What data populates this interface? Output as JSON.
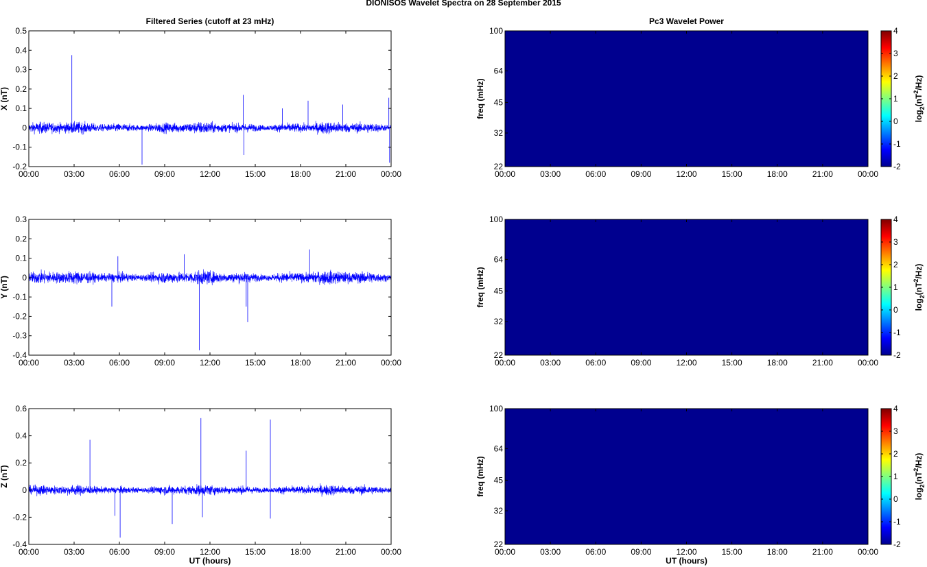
{
  "figure": {
    "title": "DIONISOS Wavelet Spectra on 28 September 2015"
  },
  "colors": {
    "trace": "#0000ff",
    "spectrum_fill": "#00008f",
    "colormap": [
      "#00008f",
      "#0000ff",
      "#0080ff",
      "#00ffff",
      "#80ff80",
      "#ffff00",
      "#ff8000",
      "#ff0000",
      "#800000"
    ]
  },
  "chart_data": [
    {
      "id": "x-series",
      "type": "line",
      "title": "Filtered Series (cutoff at 23 mHz)",
      "xlabel": "",
      "ylabel": "X (nT)",
      "xlim": [
        0,
        24
      ],
      "ylim": [
        -0.2,
        0.5
      ],
      "yticks": [
        "-0.2",
        "-0.1",
        "0",
        "0.1",
        "0.2",
        "0.3",
        "0.4",
        "0.5"
      ],
      "xticks": [
        "00:00",
        "03:00",
        "06:00",
        "09:00",
        "12:00",
        "15:00",
        "18:00",
        "21:00",
        "00:00"
      ],
      "noise_amplitude": 0.04,
      "spikes": [
        {
          "t": 2.85,
          "v": 0.375
        },
        {
          "t": 7.5,
          "v": -0.19
        },
        {
          "t": 14.2,
          "v": 0.17
        },
        {
          "t": 14.25,
          "v": -0.14
        },
        {
          "t": 18.5,
          "v": 0.14
        },
        {
          "t": 20.8,
          "v": 0.12
        },
        {
          "t": 23.85,
          "v": 0.155
        },
        {
          "t": 23.9,
          "v": -0.18
        },
        {
          "t": 16.8,
          "v": 0.1
        }
      ]
    },
    {
      "id": "x-spectrum",
      "type": "heatmap",
      "title": "Pc3 Wavelet Power",
      "xlabel": "",
      "ylabel": "freq (mHz)",
      "xlim": [
        0,
        24
      ],
      "yticks": [
        "22",
        "32",
        "45",
        "64",
        "100"
      ],
      "xticks": [
        "00:00",
        "03:00",
        "06:00",
        "09:00",
        "12:00",
        "15:00",
        "18:00",
        "21:00",
        "00:00"
      ],
      "value": -2,
      "colorbar": {
        "label_main": "log",
        "label_sub": "2",
        "label_rest": "(nT",
        "label_sup": "2",
        "label_end": "/Hz)",
        "ticks": [
          "-2",
          "-1",
          "0",
          "1",
          "2",
          "3",
          "4"
        ],
        "range": [
          -2,
          4
        ]
      }
    },
    {
      "id": "y-series",
      "type": "line",
      "title": "",
      "xlabel": "",
      "ylabel": "Y (nT)",
      "xlim": [
        0,
        24
      ],
      "ylim": [
        -0.4,
        0.3
      ],
      "yticks": [
        "-0.4",
        "-0.3",
        "-0.2",
        "-0.1",
        "0",
        "0.1",
        "0.2",
        "0.3"
      ],
      "xticks": [
        "00:00",
        "03:00",
        "06:00",
        "09:00",
        "12:00",
        "15:00",
        "18:00",
        "21:00",
        "00:00"
      ],
      "noise_amplitude": 0.045,
      "spikes": [
        {
          "t": 11.3,
          "v": -0.375
        },
        {
          "t": 14.5,
          "v": -0.23
        },
        {
          "t": 18.6,
          "v": 0.145
        },
        {
          "t": 5.5,
          "v": -0.15
        },
        {
          "t": 5.9,
          "v": 0.11
        },
        {
          "t": 10.3,
          "v": 0.12
        },
        {
          "t": 14.4,
          "v": -0.15
        }
      ]
    },
    {
      "id": "y-spectrum",
      "type": "heatmap",
      "title": "",
      "xlabel": "",
      "ylabel": "freq (mHz)",
      "xlim": [
        0,
        24
      ],
      "yticks": [
        "22",
        "32",
        "45",
        "64",
        "100"
      ],
      "xticks": [
        "00:00",
        "03:00",
        "06:00",
        "09:00",
        "12:00",
        "15:00",
        "18:00",
        "21:00",
        "00:00"
      ],
      "value": -2,
      "colorbar": {
        "label_main": "log",
        "label_sub": "2",
        "label_rest": "(nT",
        "label_sup": "2",
        "label_end": "/Hz)",
        "ticks": [
          "-2",
          "-1",
          "0",
          "1",
          "2",
          "3",
          "4"
        ],
        "range": [
          -2,
          4
        ]
      }
    },
    {
      "id": "z-series",
      "type": "line",
      "title": "",
      "xlabel": "UT (hours)",
      "ylabel": "Z (nT)",
      "xlim": [
        0,
        24
      ],
      "ylim": [
        -0.4,
        0.6
      ],
      "yticks": [
        "-0.4",
        "-0.2",
        "0",
        "0.2",
        "0.4",
        "0.6"
      ],
      "xticks": [
        "00:00",
        "03:00",
        "06:00",
        "09:00",
        "12:00",
        "15:00",
        "18:00",
        "21:00",
        "00:00"
      ],
      "noise_amplitude": 0.05,
      "spikes": [
        {
          "t": 11.4,
          "v": 0.53
        },
        {
          "t": 16.0,
          "v": 0.52
        },
        {
          "t": 4.05,
          "v": 0.37
        },
        {
          "t": 14.4,
          "v": 0.29
        },
        {
          "t": 6.05,
          "v": -0.35
        },
        {
          "t": 9.5,
          "v": -0.25
        },
        {
          "t": 11.5,
          "v": -0.2
        },
        {
          "t": 16.0,
          "v": -0.21
        },
        {
          "t": 5.7,
          "v": -0.19
        }
      ]
    },
    {
      "id": "z-spectrum",
      "type": "heatmap",
      "title": "",
      "xlabel": "UT (hours)",
      "ylabel": "freq (mHz)",
      "xlim": [
        0,
        24
      ],
      "yticks": [
        "22",
        "32",
        "45",
        "64",
        "100"
      ],
      "xticks": [
        "00:00",
        "03:00",
        "06:00",
        "09:00",
        "12:00",
        "15:00",
        "18:00",
        "21:00",
        "00:00"
      ],
      "value": -2,
      "colorbar": {
        "label_main": "log",
        "label_sub": "2",
        "label_rest": "(nT",
        "label_sup": "2",
        "label_end": "/Hz)",
        "ticks": [
          "-2",
          "-1",
          "0",
          "1",
          "2",
          "3",
          "4"
        ],
        "range": [
          -2,
          4
        ]
      }
    }
  ]
}
